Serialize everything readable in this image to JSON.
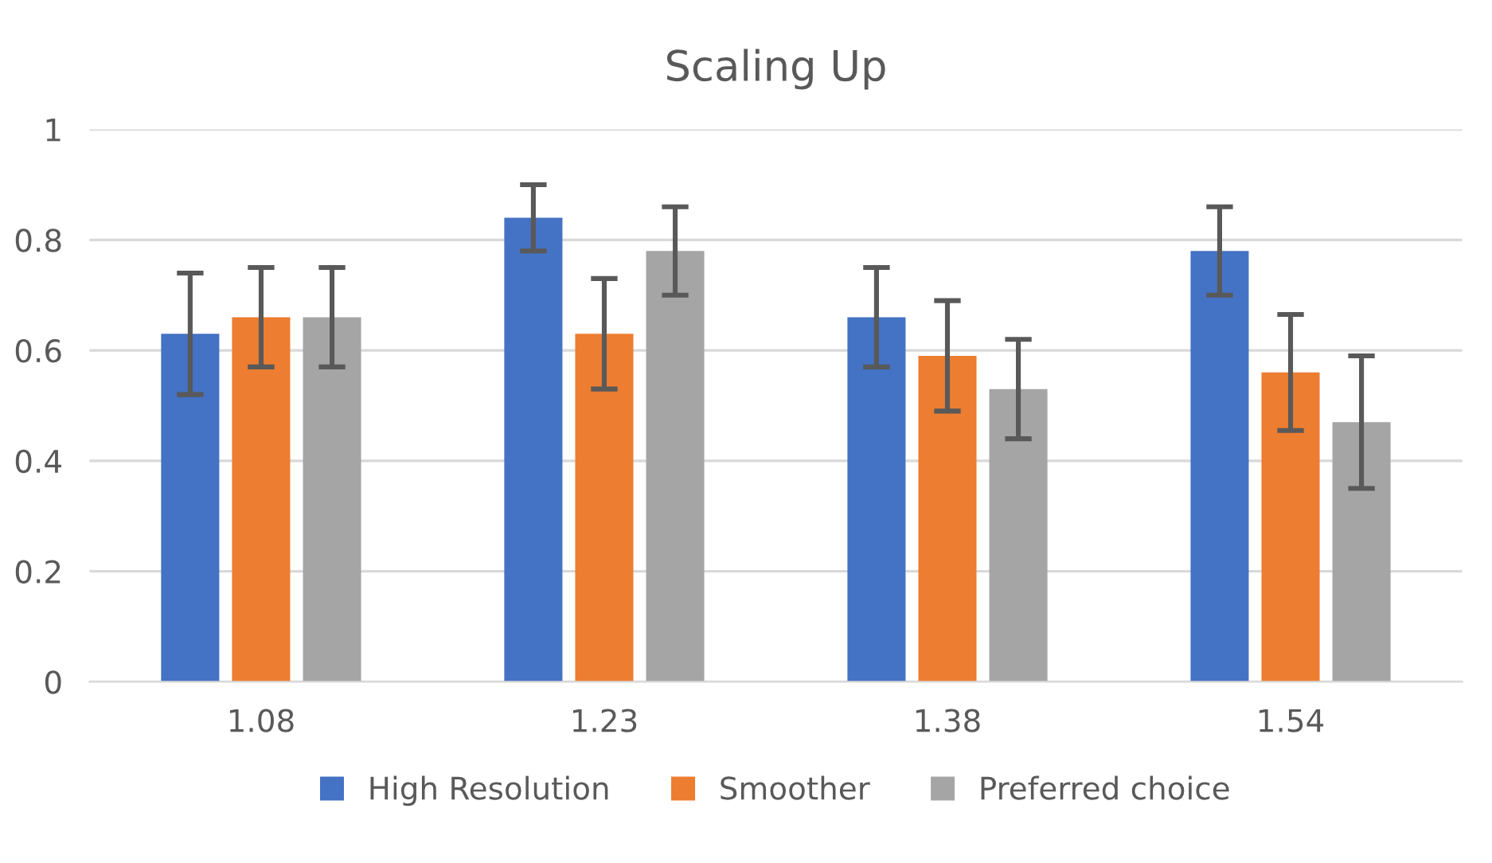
{
  "chart_data": {
    "type": "bar",
    "title": "Scaling Up",
    "categories": [
      "1.08",
      "1.23",
      "1.38",
      "1.54"
    ],
    "series": [
      {
        "name": "High Resolution",
        "color": "#4472c4",
        "values": [
          0.63,
          0.84,
          0.66,
          0.78
        ],
        "errors": [
          0.11,
          0.06,
          0.09,
          0.08
        ]
      },
      {
        "name": "Smoother",
        "color": "#ed7d31",
        "values": [
          0.66,
          0.63,
          0.59,
          0.56
        ],
        "errors": [
          0.09,
          0.1,
          0.1,
          0.105
        ]
      },
      {
        "name": "Preferred choice",
        "color": "#a5a5a5",
        "values": [
          0.66,
          0.78,
          0.53,
          0.47
        ],
        "errors": [
          0.09,
          0.08,
          0.09,
          0.12
        ]
      }
    ],
    "ylim": [
      0,
      1
    ],
    "yticks": [
      0,
      0.2,
      0.4,
      0.6,
      0.8,
      1
    ],
    "grid": "y",
    "legend": "bottom"
  }
}
